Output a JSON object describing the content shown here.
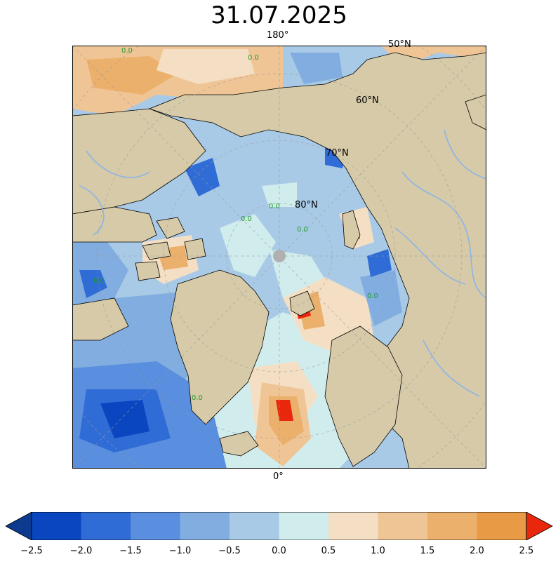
{
  "title": "31.07.2025",
  "grid_labels": {
    "lon_180": "180°",
    "lon_0": "0°",
    "lat_50": "50°N",
    "lat_60": "60°N",
    "lat_70": "70°N",
    "lat_80": "80°N"
  },
  "contour_label": "0.0",
  "colorbar": {
    "ticks": [
      "−2.5",
      "−2.0",
      "−1.5",
      "−1.0",
      "−0.5",
      "0.0",
      "0.5",
      "1.0",
      "1.5",
      "2.0",
      "2.5"
    ],
    "colors": [
      "#0a46c0",
      "#2f6cd6",
      "#5a8ede",
      "#82ade0",
      "#a8cae6",
      "#d0ecec",
      "#f5dfc4",
      "#f0c596",
      "#ebb06c",
      "#e89a45"
    ],
    "under_color": "#0b3a8f",
    "over_color": "#e8270c"
  },
  "palette": {
    "land": "#d6caa8",
    "rivers": "#8cb4e6",
    "pole": "#b0b0b0",
    "contour_green": "#1f9c2a"
  }
}
